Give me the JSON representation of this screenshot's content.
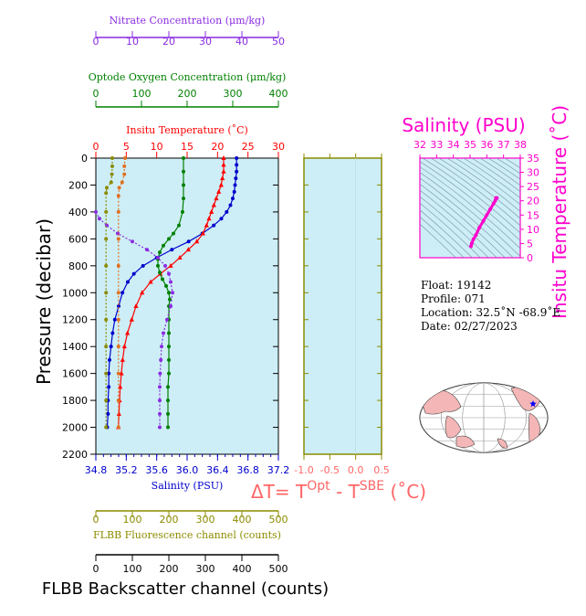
{
  "colors": {
    "nitrate": "#8a2be2",
    "oxygen": "#008000",
    "temperature": "#ff0000",
    "salinity": "#0000cc",
    "fluorescence": "#8b8b00",
    "backscatter": "#000000",
    "delta": "#ff6666",
    "ts_accent": "#ff00cc",
    "plot_bg": "#cdeef6",
    "map_land": "#f4b6b6"
  },
  "info": {
    "float": "Float:  19142",
    "profile": "Profile:  071",
    "location": "Location:  32.5˚N  -68.9˚E",
    "date": "Date:  02/27/2023"
  },
  "chart_data": [
    {
      "type": "line",
      "panel": "main-profile",
      "ylabel": "Pressure (decibar)",
      "ylim": [
        2200,
        0
      ],
      "yticks": [
        0,
        200,
        400,
        600,
        800,
        1000,
        1200,
        1400,
        1600,
        1800,
        2000,
        2200
      ],
      "grid": false,
      "axes": [
        {
          "key": "nitrate",
          "label": "Nitrate Concentration (μm/kg)",
          "range": [
            0,
            50
          ],
          "ticks": [
            0,
            10,
            20,
            30,
            40,
            50
          ],
          "position": "top"
        },
        {
          "key": "oxygen",
          "label": "Optode Oxygen Concentration (μm/kg)",
          "range": [
            0,
            400
          ],
          "ticks": [
            0,
            100,
            200,
            300,
            400
          ],
          "position": "top"
        },
        {
          "key": "temperature",
          "label": "Insitu Temperature (˚C)",
          "range": [
            0,
            30
          ],
          "ticks": [
            0,
            5,
            10,
            15,
            20,
            25,
            30
          ],
          "position": "top"
        },
        {
          "key": "salinity",
          "label": "Salinity (PSU)",
          "range": [
            34.8,
            37.2
          ],
          "ticks": [
            "34.8",
            "35.2",
            "35.6",
            "36.0",
            "36.4",
            "36.8",
            "37.2"
          ],
          "position": "bottom"
        },
        {
          "key": "fluorescence",
          "label": "FLBB Fluorescence channel (counts)",
          "range": [
            0,
            500
          ],
          "ticks": [
            0,
            100,
            200,
            300,
            400,
            500
          ],
          "position": "bottom"
        },
        {
          "key": "backscatter",
          "label": "FLBB Backscatter channel (counts)",
          "range": [
            0,
            500
          ],
          "ticks": [
            0,
            100,
            200,
            300,
            400,
            500
          ],
          "position": "bottom"
        }
      ],
      "series": [
        {
          "key": "salinity",
          "axis": "salinity",
          "marker": "circle",
          "points": [
            [
              36.65,
              0
            ],
            [
              36.65,
              50
            ],
            [
              36.65,
              100
            ],
            [
              36.64,
              150
            ],
            [
              36.63,
              200
            ],
            [
              36.62,
              250
            ],
            [
              36.6,
              300
            ],
            [
              36.57,
              350
            ],
            [
              36.52,
              400
            ],
            [
              36.45,
              450
            ],
            [
              36.35,
              500
            ],
            [
              36.2,
              560
            ],
            [
              36.02,
              620
            ],
            [
              35.8,
              680
            ],
            [
              35.6,
              740
            ],
            [
              35.42,
              800
            ],
            [
              35.3,
              860
            ],
            [
              35.22,
              920
            ],
            [
              35.15,
              1000
            ],
            [
              35.1,
              1100
            ],
            [
              35.05,
              1200
            ],
            [
              35.02,
              1300
            ],
            [
              35.0,
              1400
            ],
            [
              34.98,
              1500
            ],
            [
              34.97,
              1600
            ],
            [
              34.97,
              1700
            ],
            [
              34.96,
              1800
            ],
            [
              34.96,
              1900
            ],
            [
              34.95,
              2000
            ]
          ]
        },
        {
          "key": "temperature",
          "axis": "temperature",
          "marker": "triangle",
          "points": [
            [
              21,
              0
            ],
            [
              21,
              50
            ],
            [
              21,
              100
            ],
            [
              20.8,
              150
            ],
            [
              20.6,
              200
            ],
            [
              20.2,
              250
            ],
            [
              19.8,
              300
            ],
            [
              19.4,
              350
            ],
            [
              19,
              400
            ],
            [
              18.6,
              450
            ],
            [
              18.2,
              500
            ],
            [
              17.6,
              560
            ],
            [
              16.6,
              620
            ],
            [
              15.2,
              680
            ],
            [
              13.8,
              740
            ],
            [
              12.3,
              800
            ],
            [
              10.6,
              860
            ],
            [
              9.0,
              920
            ],
            [
              7.6,
              1000
            ],
            [
              6.6,
              1100
            ],
            [
              5.9,
              1200
            ],
            [
              5.2,
              1300
            ],
            [
              4.7,
              1400
            ],
            [
              4.4,
              1500
            ],
            [
              4.2,
              1600
            ],
            [
              4.0,
              1700
            ],
            [
              3.9,
              1800
            ],
            [
              3.8,
              1900
            ],
            [
              3.7,
              2000
            ]
          ]
        },
        {
          "key": "oxygen",
          "axis": "oxygen",
          "marker": "circle",
          "points": [
            [
              192,
              0
            ],
            [
              192,
              100
            ],
            [
              192,
              200
            ],
            [
              192,
              300
            ],
            [
              190,
              400
            ],
            [
              182,
              500
            ],
            [
              170,
              560
            ],
            [
              160,
              600
            ],
            [
              148,
              650
            ],
            [
              140,
              700
            ],
            [
              136,
              750
            ],
            [
              136,
              800
            ],
            [
              140,
              850
            ],
            [
              146,
              900
            ],
            [
              154,
              950
            ],
            [
              160,
              1000
            ],
            [
              162,
              1050
            ],
            [
              160,
              1100
            ],
            [
              160,
              1200
            ],
            [
              160,
              1300
            ],
            [
              160,
              1400
            ],
            [
              160,
              1500
            ],
            [
              160,
              1600
            ],
            [
              158,
              1700
            ],
            [
              158,
              1800
            ],
            [
              158,
              1900
            ],
            [
              158,
              2000
            ]
          ]
        },
        {
          "key": "nitrate",
          "axis": "nitrate",
          "marker": "circle",
          "points": [
            [
              0,
              400
            ],
            [
              1,
              450
            ],
            [
              3,
              500
            ],
            [
              6,
              560
            ],
            [
              10,
              620
            ],
            [
              14,
              680
            ],
            [
              17,
              740
            ],
            [
              19,
              800
            ],
            [
              20,
              860
            ],
            [
              20.5,
              920
            ],
            [
              21,
              1000
            ],
            [
              20.5,
              1100
            ],
            [
              19.5,
              1200
            ],
            [
              18.5,
              1300
            ],
            [
              18,
              1400
            ],
            [
              17.8,
              1500
            ],
            [
              17.6,
              1600
            ],
            [
              17.5,
              1700
            ],
            [
              17.5,
              1800
            ],
            [
              17.5,
              1900
            ],
            [
              17.5,
              2000
            ]
          ]
        },
        {
          "key": "fluorescence",
          "axis": "fluorescence",
          "marker": "circle",
          "points": [
            [
              45,
              0
            ],
            [
              45,
              60
            ],
            [
              44,
              120
            ],
            [
              42,
              180
            ],
            [
              30,
              220
            ],
            [
              28,
              260
            ],
            [
              28,
              400
            ],
            [
              28,
              600
            ],
            [
              28,
              800
            ],
            [
              28,
              1000
            ],
            [
              28,
              1200
            ],
            [
              28,
              1400
            ],
            [
              28,
              1600
            ],
            [
              28,
              1800
            ],
            [
              28,
              2000
            ]
          ]
        },
        {
          "key": "backscatter",
          "axis": "backscatter",
          "marker": "circle",
          "color_override": "#e07020",
          "points": [
            [
              80,
              0
            ],
            [
              78,
              60
            ],
            [
              78,
              120
            ],
            [
              72,
              180
            ],
            [
              64,
              220
            ],
            [
              62,
              280
            ],
            [
              62,
              400
            ],
            [
              62,
              600
            ],
            [
              62,
              800
            ],
            [
              62,
              1000
            ],
            [
              62,
              1200
            ],
            [
              62,
              1400
            ],
            [
              62,
              1600
            ],
            [
              62,
              1800
            ],
            [
              62,
              2000
            ]
          ]
        }
      ]
    },
    {
      "type": "line",
      "panel": "delta-t",
      "xlabel": "ΔT= T",
      "xlabel_sup1": "Opt",
      "xlabel_mid": " - T",
      "xlabel_sup2": "SBE",
      "xlabel_end": " (˚C)",
      "xlim": [
        -1.0,
        0.5
      ],
      "xticks": [
        "-1.0",
        "-0.5",
        "0.0",
        "0.5"
      ],
      "ylim": [
        2200,
        0
      ],
      "series": []
    },
    {
      "type": "scatter",
      "panel": "ts-diagram",
      "title": "Salinity (PSU)",
      "ylabel": "Insitu Temperature (˚C)",
      "xlim": [
        32,
        38
      ],
      "xticks": [
        32,
        33,
        34,
        35,
        36,
        37,
        38
      ],
      "ylim": [
        0,
        35
      ],
      "yticks": [
        0,
        5,
        10,
        15,
        20,
        25,
        30,
        35
      ],
      "points": [
        [
          35.05,
          4
        ],
        [
          35.1,
          5
        ],
        [
          35.2,
          6.5
        ],
        [
          35.35,
          8
        ],
        [
          35.55,
          10.5
        ],
        [
          35.8,
          13
        ],
        [
          36.0,
          15
        ],
        [
          36.2,
          17
        ],
        [
          36.4,
          19
        ],
        [
          36.5,
          20
        ],
        [
          36.55,
          21
        ],
        [
          36.6,
          21
        ]
      ]
    }
  ]
}
